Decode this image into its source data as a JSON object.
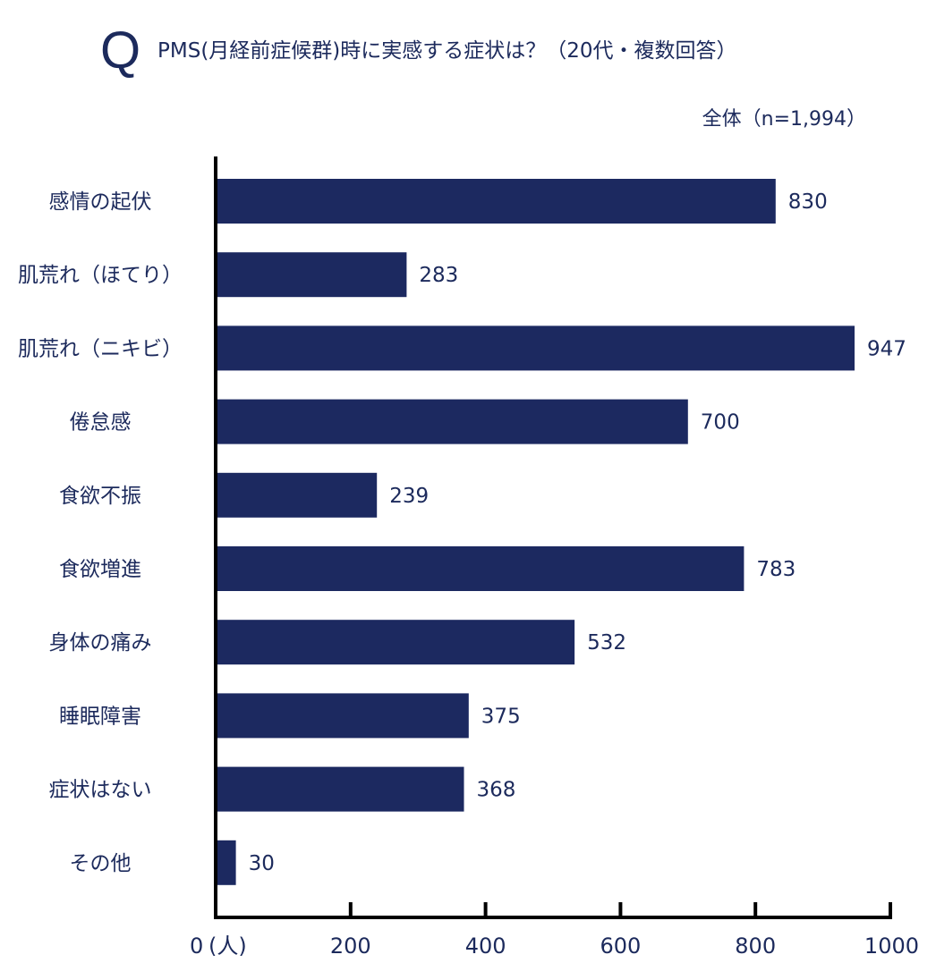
{
  "header": {
    "q_mark": "Q",
    "title": "PMS(月経前症候群)時に実感する症状は？（20代・複数回答）",
    "sample": "全体（n=1,994）"
  },
  "chart_data": {
    "type": "bar",
    "orientation": "horizontal",
    "categories": [
      "感情の起伏",
      "肌荒れ（ほてり）",
      "肌荒れ（ニキビ）",
      "倦怠感",
      "食欲不振",
      "食欲増進",
      "身体の痛み",
      "睡眠障害",
      "症状はない",
      "その他"
    ],
    "values": [
      830,
      283,
      947,
      700,
      239,
      783,
      532,
      375,
      368,
      30
    ],
    "value_labels": [
      "830",
      "283",
      "947",
      "700",
      "239",
      "783",
      "532",
      "375",
      "368",
      "30"
    ],
    "xlim": [
      0,
      1000
    ],
    "ticks": [
      0,
      200,
      400,
      600,
      800,
      1000
    ],
    "tick_labels": [
      "0",
      "200",
      "400",
      "600",
      "800",
      "1000"
    ],
    "unit_label": "(人)",
    "bar_color": "#1c2960",
    "grid": false
  }
}
